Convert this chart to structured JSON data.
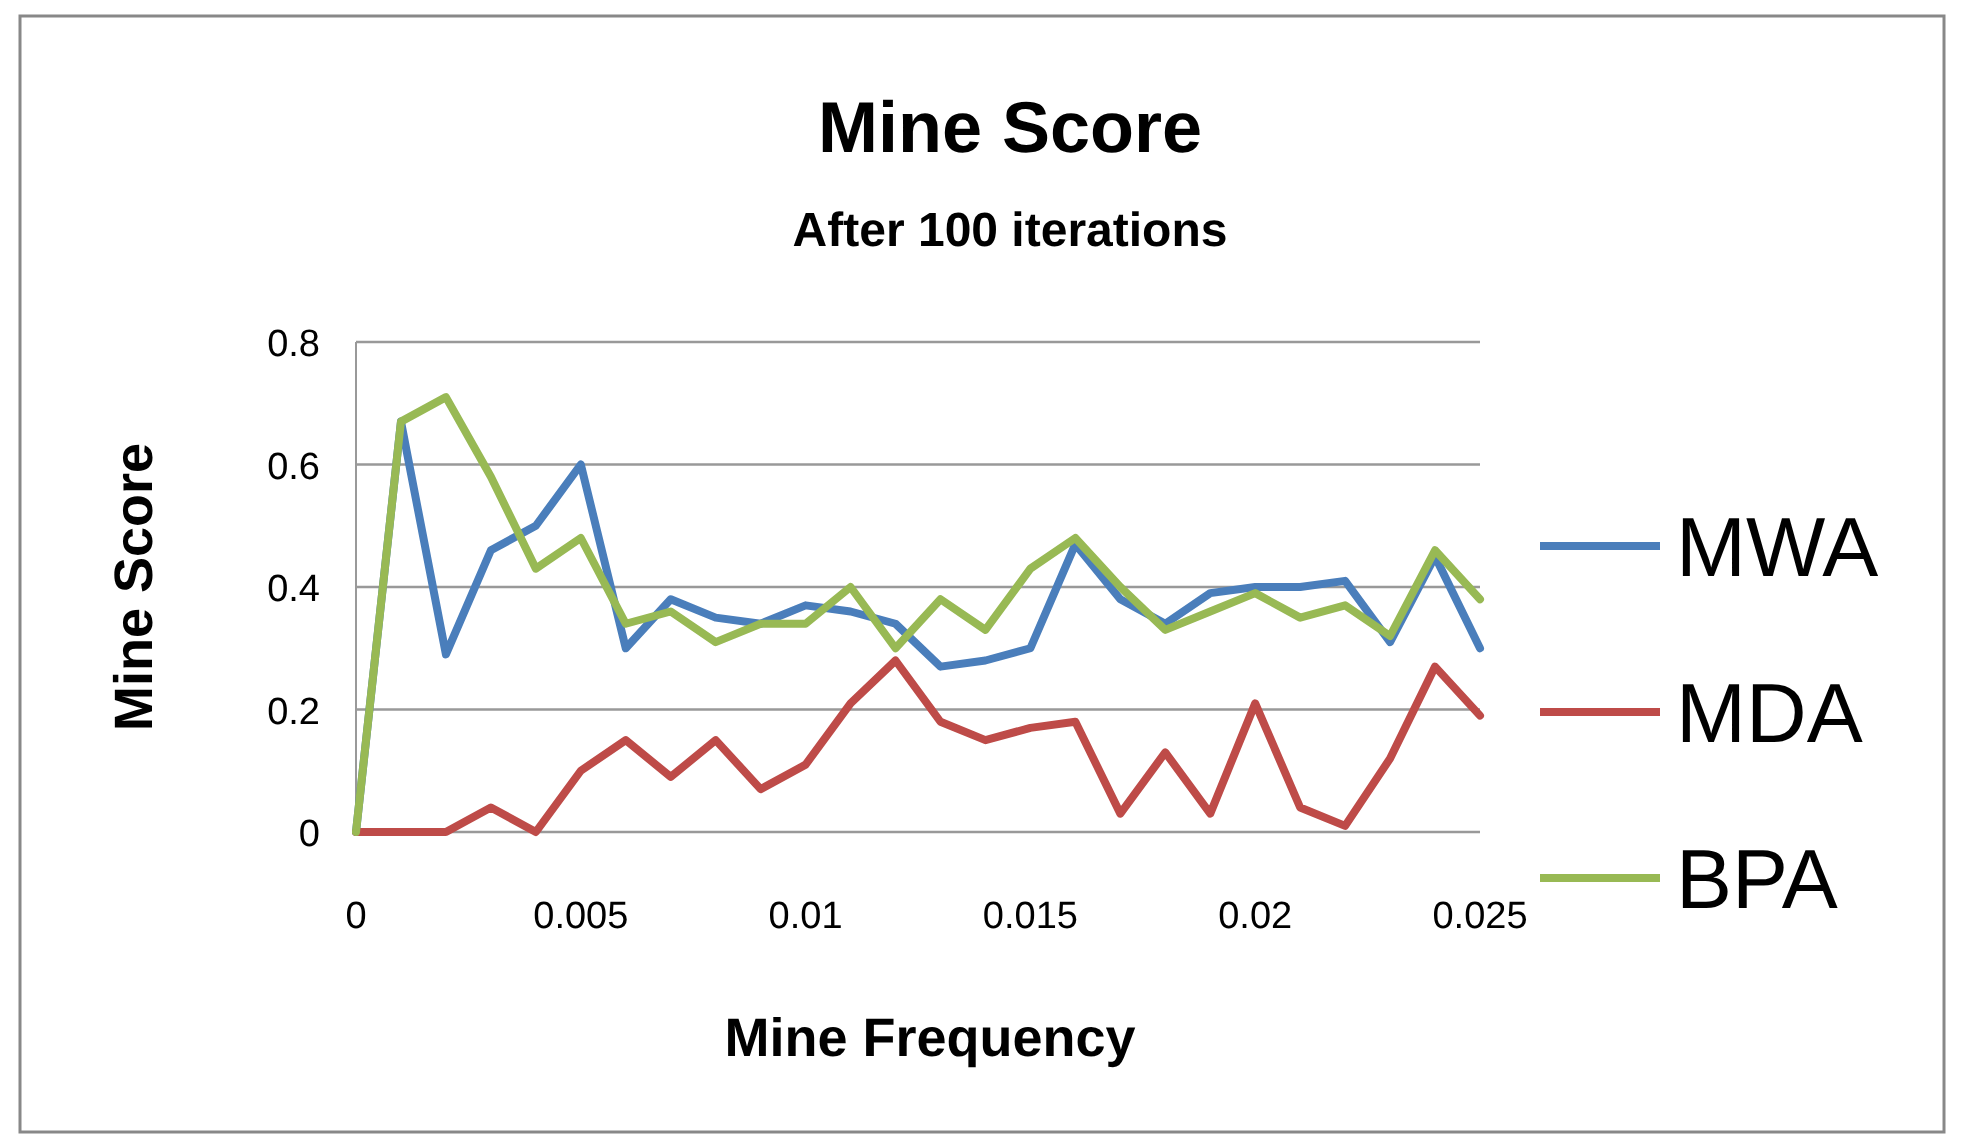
{
  "chart_data": {
    "type": "line",
    "title": "Mine Score",
    "subtitle": "After 100 iterations",
    "xlabel": "Mine Frequency",
    "ylabel": "Mine Score",
    "x": [
      0,
      0.001,
      0.002,
      0.003,
      0.004,
      0.005,
      0.006,
      0.007,
      0.008,
      0.009,
      0.01,
      0.011,
      0.012,
      0.013,
      0.014,
      0.015,
      0.016,
      0.017,
      0.018,
      0.019,
      0.02,
      0.021,
      0.022,
      0.023,
      0.024,
      0.025
    ],
    "series": [
      {
        "name": "MWA",
        "color": "#4a7ebb",
        "values": [
          0,
          0.67,
          0.29,
          0.46,
          0.5,
          0.6,
          0.3,
          0.38,
          0.35,
          0.34,
          0.37,
          0.36,
          0.34,
          0.27,
          0.28,
          0.3,
          0.47,
          0.38,
          0.34,
          0.39,
          0.4,
          0.4,
          0.41,
          0.31,
          0.45,
          0.3
        ]
      },
      {
        "name": "MDA",
        "color": "#be4b48",
        "values": [
          0,
          0,
          0,
          0.04,
          0,
          0.1,
          0.15,
          0.09,
          0.15,
          0.07,
          0.11,
          0.21,
          0.28,
          0.18,
          0.15,
          0.17,
          0.18,
          0.03,
          0.13,
          0.03,
          0.21,
          0.04,
          0.01,
          0.12,
          0.27,
          0.19
        ]
      },
      {
        "name": "BPA",
        "color": "#98b954",
        "values": [
          0,
          0.67,
          0.71,
          0.58,
          0.43,
          0.48,
          0.34,
          0.36,
          0.31,
          0.34,
          0.34,
          0.4,
          0.3,
          0.38,
          0.33,
          0.43,
          0.48,
          0.4,
          0.33,
          0.36,
          0.39,
          0.35,
          0.37,
          0.32,
          0.46,
          0.38
        ]
      }
    ],
    "xlim": [
      0,
      0.025
    ],
    "xticks": [
      0,
      0.005,
      0.01,
      0.015,
      0.02,
      0.025
    ],
    "ylim": [
      0,
      0.8
    ],
    "yticks": [
      0,
      0.2,
      0.4,
      0.6,
      0.8
    ],
    "grid": "y",
    "legend": "right",
    "marker": "none",
    "line_style": "solid"
  }
}
